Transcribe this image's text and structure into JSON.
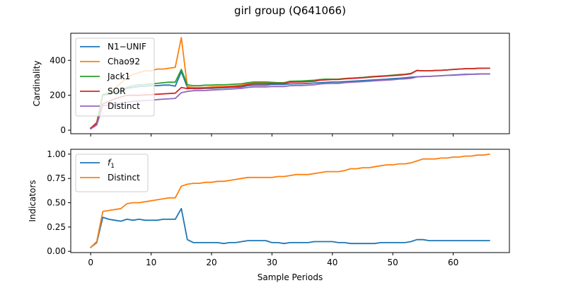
{
  "figure": {
    "title": "girl group (Q641066)"
  },
  "chart_data": [
    {
      "type": "line",
      "ylabel": "Cardinality",
      "xlabel": "",
      "xlim": [
        -3.3,
        69.3
      ],
      "ylim": [
        -20,
        555
      ],
      "yticks": [
        0,
        200,
        400
      ],
      "xticks": [
        0,
        10,
        20,
        30,
        40,
        50,
        60
      ],
      "show_xticklabels": false,
      "grid": false,
      "legend_position": "top-left",
      "x": [
        0,
        1,
        2,
        3,
        4,
        5,
        6,
        7,
        8,
        9,
        10,
        11,
        12,
        13,
        14,
        15,
        16,
        17,
        18,
        19,
        20,
        21,
        22,
        23,
        24,
        25,
        26,
        27,
        28,
        29,
        30,
        31,
        32,
        33,
        34,
        35,
        36,
        37,
        38,
        39,
        40,
        41,
        42,
        43,
        44,
        45,
        46,
        47,
        48,
        49,
        50,
        51,
        52,
        53,
        54,
        55,
        56,
        57,
        58,
        59,
        60,
        61,
        62,
        63,
        64,
        65,
        66
      ],
      "series": [
        {
          "name": "N1−UNIF",
          "color": "#1f77b4",
          "values": [
            12,
            35,
            200,
            205,
            215,
            220,
            240,
            245,
            250,
            252,
            255,
            255,
            258,
            258,
            252,
            335,
            245,
            238,
            238,
            240,
            240,
            242,
            243,
            245,
            246,
            248,
            255,
            258,
            258,
            258,
            262,
            262,
            262,
            265,
            266,
            266,
            268,
            270,
            272,
            274,
            276,
            276,
            278,
            280,
            282,
            284,
            286,
            288,
            290,
            292,
            295,
            297,
            300,
            303,
            306,
            307,
            308,
            310,
            312,
            314,
            316,
            318,
            320,
            320,
            322,
            322,
            322
          ]
        },
        {
          "name": "Chao92",
          "color": "#ff7f0e",
          "values": [
            12,
            45,
            200,
            215,
            240,
            270,
            300,
            320,
            330,
            340,
            340,
            350,
            350,
            355,
            360,
            530,
            250,
            245,
            245,
            245,
            248,
            250,
            250,
            252,
            255,
            258,
            265,
            272,
            272,
            272,
            270,
            268,
            268,
            280,
            280,
            280,
            283,
            285,
            290,
            292,
            292,
            292,
            296,
            298,
            300,
            302,
            305,
            308,
            310,
            312,
            315,
            318,
            320,
            325,
            342,
            340,
            340,
            342,
            343,
            345,
            348,
            350,
            352,
            352,
            354,
            355,
            355
          ]
        },
        {
          "name": "Jack1",
          "color": "#2ca02c",
          "values": [
            12,
            40,
            205,
            210,
            220,
            230,
            245,
            255,
            260,
            262,
            265,
            268,
            272,
            275,
            275,
            348,
            260,
            255,
            255,
            258,
            258,
            260,
            260,
            262,
            264,
            266,
            272,
            276,
            276,
            276,
            274,
            272,
            272,
            280,
            281,
            282,
            284,
            286,
            290,
            292,
            292,
            292,
            296,
            298,
            300,
            302,
            305,
            308,
            310,
            312,
            315,
            318,
            320,
            325,
            342,
            340,
            340,
            342,
            343,
            345,
            348,
            350,
            352,
            352,
            354,
            355,
            355
          ]
        },
        {
          "name": "SOR",
          "color": "#d62728",
          "values": [
            12,
            40,
            150,
            165,
            180,
            190,
            200,
            200,
            200,
            202,
            204,
            206,
            208,
            210,
            212,
            245,
            238,
            240,
            240,
            242,
            243,
            245,
            246,
            248,
            250,
            253,
            262,
            266,
            266,
            266,
            268,
            268,
            268,
            275,
            276,
            276,
            278,
            280,
            286,
            288,
            290,
            290,
            294,
            296,
            298,
            300,
            303,
            306,
            308,
            310,
            313,
            315,
            318,
            323,
            342,
            340,
            340,
            342,
            343,
            345,
            348,
            350,
            352,
            352,
            354,
            355,
            355
          ]
        },
        {
          "name": "Distinct",
          "color": "#9467bd",
          "values": [
            8,
            30,
            140,
            145,
            150,
            155,
            160,
            165,
            168,
            170,
            172,
            175,
            178,
            180,
            182,
            215,
            222,
            226,
            227,
            228,
            230,
            232,
            233,
            235,
            237,
            240,
            245,
            248,
            248,
            248,
            250,
            250,
            250,
            255,
            256,
            256,
            258,
            260,
            265,
            267,
            268,
            268,
            272,
            274,
            276,
            278,
            280,
            283,
            285,
            287,
            289,
            292,
            294,
            297,
            305,
            307,
            308,
            310,
            312,
            314,
            315,
            317,
            318,
            320,
            321,
            322,
            322
          ]
        }
      ]
    },
    {
      "type": "line",
      "ylabel": "Indicators",
      "xlabel": "Sample Periods",
      "xlim": [
        -3.3,
        69.3
      ],
      "ylim": [
        -0.013,
        1.05
      ],
      "yticks": [
        0.0,
        0.25,
        0.5,
        0.75,
        1.0
      ],
      "ytick_labels": [
        "0.00",
        "0.25",
        "0.50",
        "0.75",
        "1.00"
      ],
      "xticks": [
        0,
        10,
        20,
        30,
        40,
        50,
        60
      ],
      "show_xticklabels": true,
      "grid": false,
      "legend_position": "top-left",
      "x": [
        0,
        1,
        2,
        3,
        4,
        5,
        6,
        7,
        8,
        9,
        10,
        11,
        12,
        13,
        14,
        15,
        16,
        17,
        18,
        19,
        20,
        21,
        22,
        23,
        24,
        25,
        26,
        27,
        28,
        29,
        30,
        31,
        32,
        33,
        34,
        35,
        36,
        37,
        38,
        39,
        40,
        41,
        42,
        43,
        44,
        45,
        46,
        47,
        48,
        49,
        50,
        51,
        52,
        53,
        54,
        55,
        56,
        57,
        58,
        59,
        60,
        61,
        62,
        63,
        64,
        65,
        66
      ],
      "series": [
        {
          "name": "f1",
          "legend_main": "f",
          "legend_sub": "1",
          "color": "#1f77b4",
          "values": [
            0.04,
            0.09,
            0.35,
            0.33,
            0.32,
            0.31,
            0.33,
            0.32,
            0.33,
            0.32,
            0.32,
            0.32,
            0.33,
            0.33,
            0.33,
            0.44,
            0.12,
            0.09,
            0.09,
            0.09,
            0.09,
            0.09,
            0.08,
            0.09,
            0.09,
            0.1,
            0.11,
            0.11,
            0.11,
            0.11,
            0.09,
            0.09,
            0.08,
            0.09,
            0.09,
            0.09,
            0.09,
            0.1,
            0.1,
            0.1,
            0.1,
            0.09,
            0.09,
            0.08,
            0.08,
            0.08,
            0.08,
            0.08,
            0.09,
            0.09,
            0.09,
            0.09,
            0.09,
            0.1,
            0.12,
            0.12,
            0.11,
            0.11,
            0.11,
            0.11,
            0.11,
            0.11,
            0.11,
            0.11,
            0.11,
            0.11,
            0.11
          ]
        },
        {
          "name": "Distinct",
          "color": "#ff7f0e",
          "values": [
            0.04,
            0.1,
            0.41,
            0.42,
            0.43,
            0.44,
            0.49,
            0.5,
            0.5,
            0.51,
            0.52,
            0.53,
            0.54,
            0.55,
            0.55,
            0.67,
            0.69,
            0.7,
            0.7,
            0.71,
            0.71,
            0.72,
            0.72,
            0.73,
            0.74,
            0.75,
            0.76,
            0.76,
            0.76,
            0.76,
            0.76,
            0.77,
            0.77,
            0.78,
            0.79,
            0.79,
            0.79,
            0.8,
            0.81,
            0.82,
            0.82,
            0.82,
            0.83,
            0.85,
            0.85,
            0.86,
            0.86,
            0.87,
            0.88,
            0.89,
            0.89,
            0.9,
            0.9,
            0.91,
            0.93,
            0.95,
            0.95,
            0.95,
            0.96,
            0.96,
            0.97,
            0.97,
            0.98,
            0.98,
            0.99,
            0.99,
            1.0
          ]
        }
      ]
    }
  ]
}
